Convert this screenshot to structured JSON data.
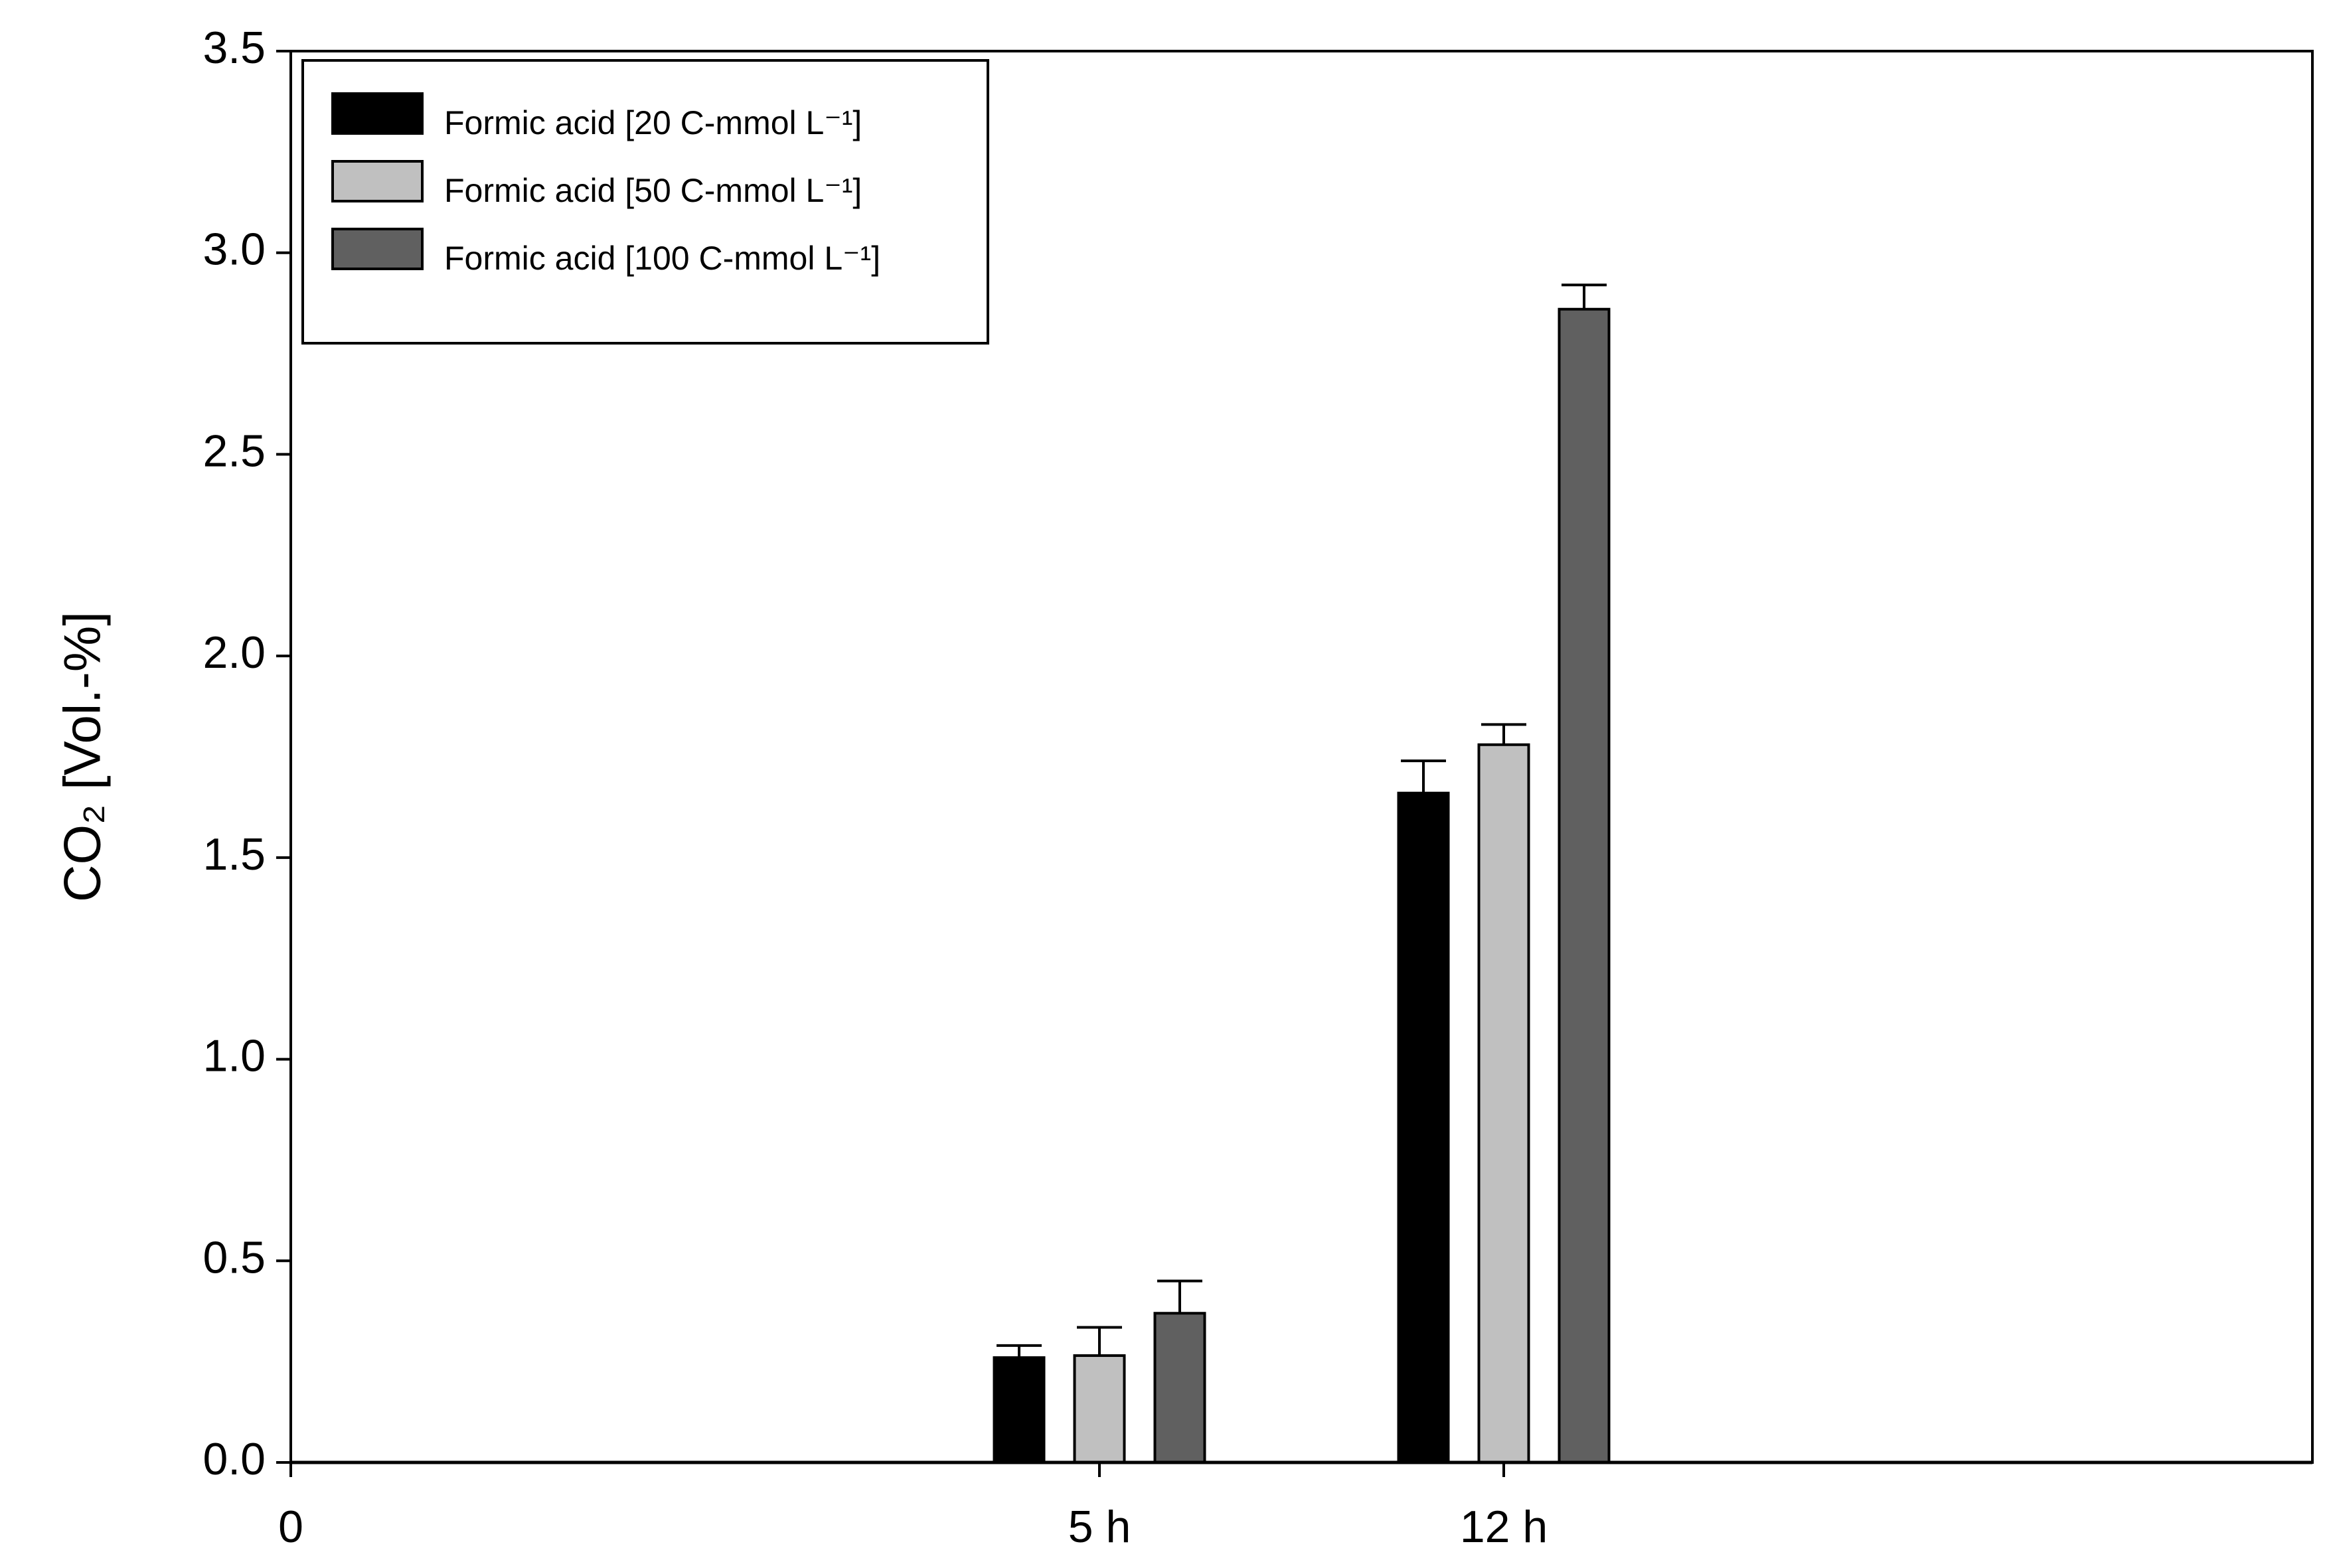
{
  "chart_data": {
    "type": "bar",
    "ylabel": "CO₂ [Vol.-%]",
    "categories": [
      "0",
      "5 h",
      "12 h"
    ],
    "series": [
      {
        "name": "Formic acid [20 C-mmol L⁻¹]",
        "color": "#000000",
        "values": [
          null,
          0.26,
          1.66
        ],
        "errors": [
          null,
          0.03,
          0.08
        ]
      },
      {
        "name": "Formic acid [50 C-mmol L⁻¹]",
        "color": "#c0c0c0",
        "values": [
          null,
          0.265,
          1.78
        ],
        "errors": [
          null,
          0.07,
          0.05
        ]
      },
      {
        "name": "Formic acid [100 C-mmol L⁻¹]",
        "color": "#606060",
        "values": [
          null,
          0.37,
          2.86
        ],
        "errors": [
          null,
          0.08,
          0.06
        ]
      }
    ],
    "ylim": [
      0,
      3.5
    ],
    "yticks": [
      {
        "value": 0,
        "label": "0.0"
      },
      0.5,
      {
        "value": 1,
        "label": "1.0"
      },
      1.5,
      {
        "value": 2,
        "label": "2.0"
      },
      2.5,
      {
        "value": 3,
        "label": "3.0"
      },
      3.5
    ],
    "legend": "upper left"
  }
}
